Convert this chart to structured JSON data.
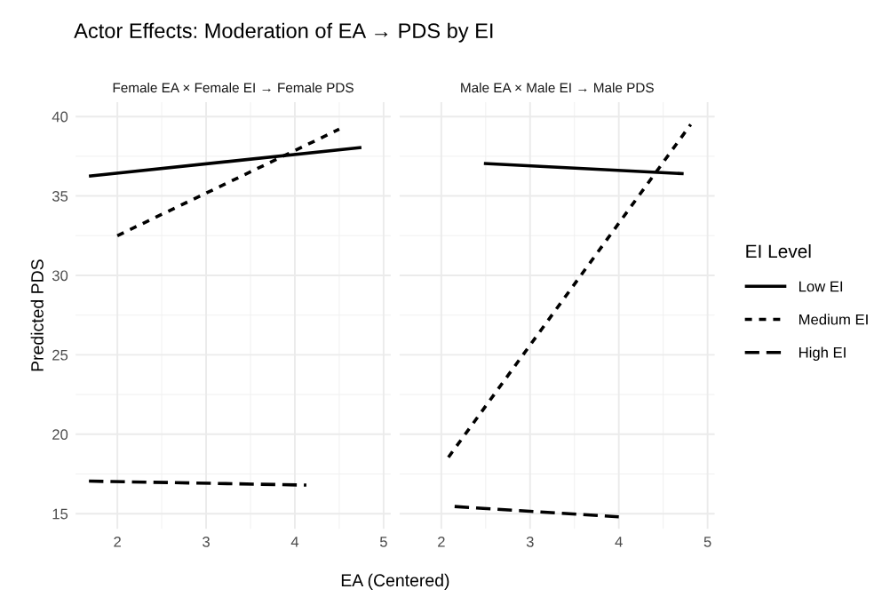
{
  "chart_data": [
    {
      "type": "line",
      "title": "Actor Effects: Moderation of EA → PDS by EI",
      "subtitle": "Female EA × Female EI → Female PDS",
      "xlabel": "EA (Centered)",
      "ylabel": "Predicted PDS",
      "xlim": [
        1.53,
        5.08
      ],
      "ylim": [
        14.05,
        40.9
      ],
      "xticks": [
        2,
        3,
        4,
        5
      ],
      "yticks": [
        15,
        20,
        25,
        30,
        35,
        40
      ],
      "grid": true,
      "series": [
        {
          "color": "#000000",
          "line_style": "solid",
          "x": [
            1.68,
            4.75
          ],
          "values": [
            36.25,
            38.05
          ]
        },
        {
          "color": "#000000",
          "line_style": "dotted",
          "x": [
            2.0,
            4.5
          ],
          "values": [
            32.5,
            39.2
          ]
        },
        {
          "color": "#000000",
          "line_style": "dashed",
          "x": [
            1.68,
            4.13
          ],
          "values": [
            17.05,
            16.8
          ]
        }
      ]
    },
    {
      "type": "line",
      "subtitle": "Male EA × Male EI → Male PDS",
      "legend_title": "EI Level",
      "legend": "right",
      "tick_labels": "x",
      "xlim": [
        1.53,
        5.08
      ],
      "ylim": [
        14.05,
        40.9
      ],
      "xticks": [
        2,
        3,
        4,
        5
      ],
      "yticks": [
        15,
        20,
        25,
        30,
        35,
        40
      ],
      "grid": true,
      "series": [
        {
          "name": "Low EI",
          "color": "#000000",
          "line_style": "solid",
          "x": [
            2.48,
            4.73
          ],
          "values": [
            37.05,
            36.4
          ]
        },
        {
          "name": "Medium EI",
          "color": "#000000",
          "line_style": "dotted",
          "x": [
            2.08,
            4.81
          ],
          "values": [
            18.55,
            39.5
          ]
        },
        {
          "name": "High EI",
          "color": "#000000",
          "line_style": "dashed",
          "x": [
            2.15,
            4.0
          ],
          "values": [
            15.45,
            14.8
          ]
        }
      ]
    }
  ]
}
